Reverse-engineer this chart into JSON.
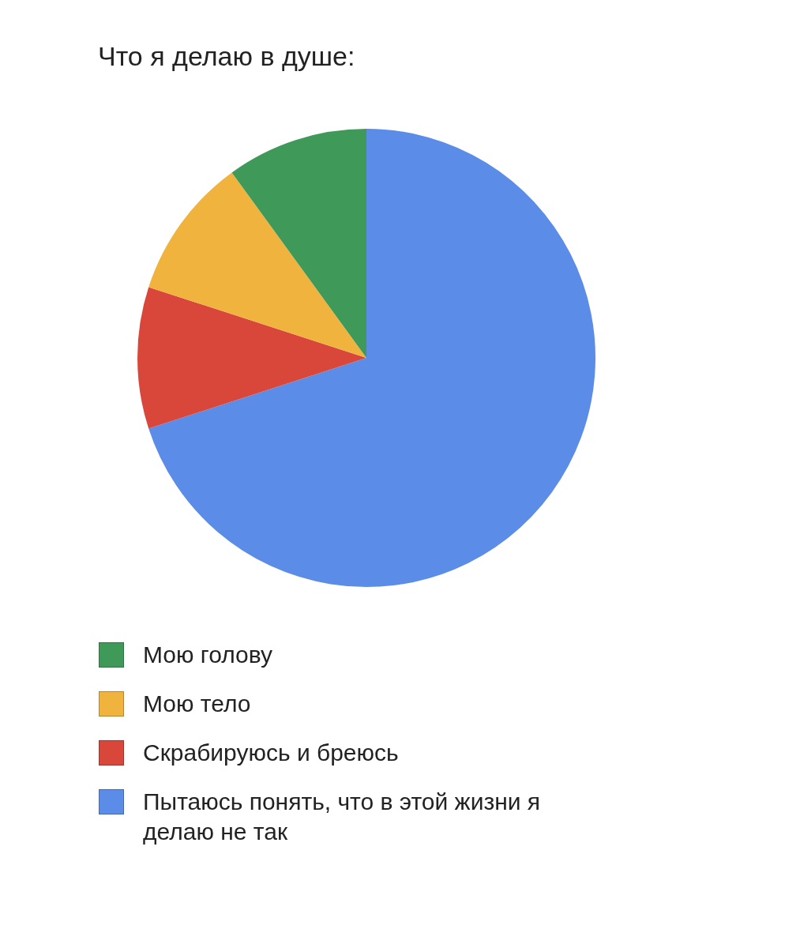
{
  "chart_data": {
    "type": "pie",
    "title": "Что я делаю в душе:",
    "categories": [
      "Мою голову",
      "Мою тело",
      "Скрабируюсь и бреюсь",
      "Пытаюсь понять, что в этой жизни я делаю не так"
    ],
    "values": [
      10,
      10,
      10,
      70
    ],
    "colors": [
      "#3f9a5a",
      "#f0b43e",
      "#d8473a",
      "#5b8ce8"
    ],
    "legend": "bottom"
  }
}
